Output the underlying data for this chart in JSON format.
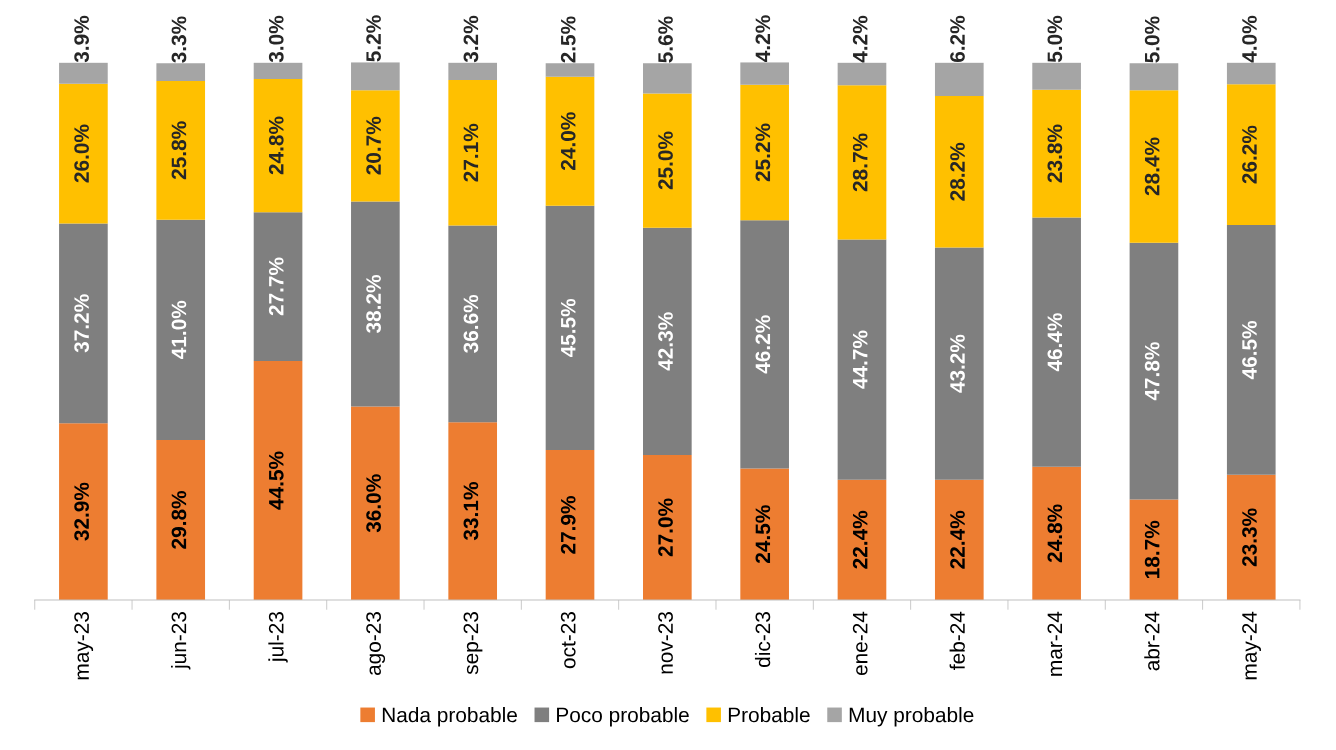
{
  "chart_data": {
    "type": "bar",
    "stacked": true,
    "legend": "bottom",
    "grid": false,
    "categories": [
      "may-23",
      "jun-23",
      "jul-23",
      "ago-23",
      "sep-23",
      "oct-23",
      "nov-23",
      "dic-23",
      "ene-24",
      "feb-24",
      "mar-24",
      "abr-24",
      "may-24"
    ],
    "series": [
      {
        "name": "Nada probable",
        "color": "#ed7d31",
        "values": [
          32.9,
          29.8,
          44.5,
          36.0,
          33.1,
          27.9,
          27.0,
          24.5,
          22.4,
          22.4,
          24.8,
          18.7,
          23.3
        ],
        "value_labels": [
          "32.9%",
          "29.8%",
          "44.5%",
          "36.0%",
          "33.1%",
          "27.9%",
          "27.0%",
          "24.5%",
          "22.4%",
          "22.4%",
          "24.8%",
          "18.7%",
          "23.3%"
        ]
      },
      {
        "name": "Poco probable",
        "color": "#7f7f7f",
        "values": [
          37.2,
          41.0,
          27.7,
          38.2,
          36.6,
          45.5,
          42.3,
          46.2,
          44.7,
          43.2,
          46.4,
          47.8,
          46.5
        ],
        "value_labels": [
          "37.2%",
          "41.0%",
          "27.7%",
          "38.2%",
          "36.6%",
          "45.5%",
          "42.3%",
          "46.2%",
          "44.7%",
          "43.2%",
          "46.4%",
          "47.8%",
          "46.5%"
        ]
      },
      {
        "name": "Probable",
        "color": "#ffc000",
        "values": [
          26.0,
          25.8,
          24.8,
          20.7,
          27.1,
          24.0,
          25.0,
          25.2,
          28.7,
          28.2,
          23.8,
          28.4,
          26.2
        ],
        "value_labels": [
          "26.0%",
          "25.8%",
          "24.8%",
          "20.7%",
          "27.1%",
          "24.0%",
          "25.0%",
          "25.2%",
          "28.7%",
          "28.2%",
          "23.8%",
          "28.4%",
          "26.2%"
        ]
      },
      {
        "name": "Muy probable",
        "color": "#a5a5a5",
        "values": [
          3.9,
          3.3,
          3.0,
          5.2,
          3.2,
          2.5,
          5.6,
          4.2,
          4.2,
          6.2,
          5.0,
          5.0,
          4.0
        ],
        "value_labels": [
          "3.9%",
          "3.3%",
          "3.0%",
          "5.2%",
          "3.2%",
          "2.5%",
          "5.6%",
          "4.2%",
          "4.2%",
          "6.2%",
          "5.0%",
          "5.0%",
          "4.0%"
        ]
      }
    ]
  }
}
